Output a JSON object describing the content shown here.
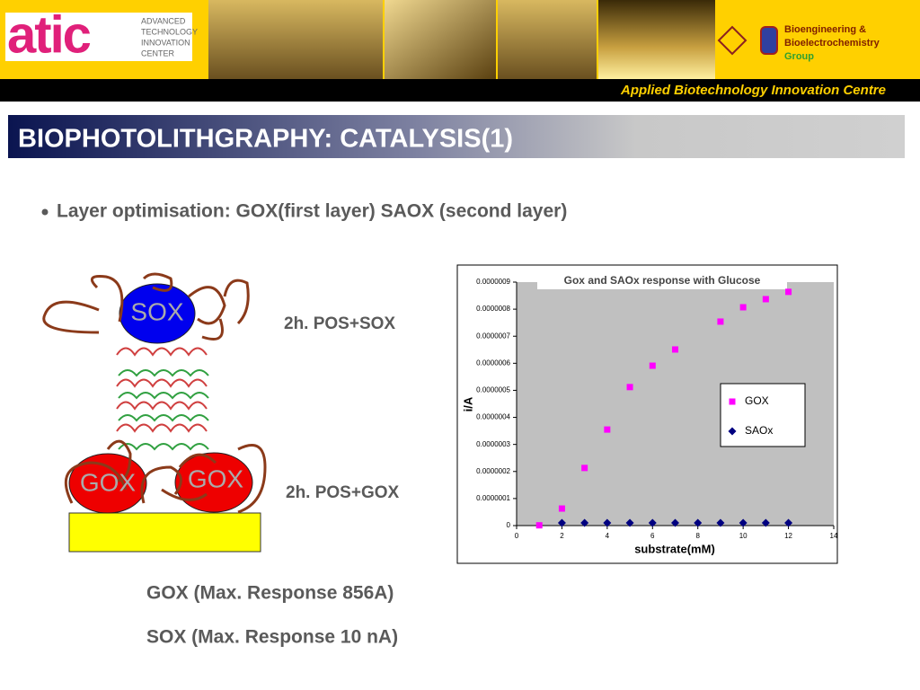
{
  "header": {
    "logo": "atic",
    "logo_text": [
      "ADVANCED",
      "TECHNOLOGY",
      "INNOVATION",
      "CENTER"
    ],
    "group": [
      "Bioengineering &",
      "Bioelectrochemistry",
      "Group"
    ]
  },
  "banner": "Applied Biotechnology Innovation Centre",
  "slide": {
    "title": "BIOPHOTOLITHGRAPHY: CATALYSIS(1)",
    "bullet": "Layer optimisation: GOX(first layer) SAOX (second layer)",
    "diagram": {
      "top": "SOX",
      "bottom": [
        "GOX",
        "GOX"
      ],
      "labels": [
        "2h. POS+SOX",
        "2h. POS+GOX"
      ]
    },
    "notes": [
      "GOX (Max. Response 856A)",
      "SOX (Max. Response 10 nA)"
    ]
  },
  "chart_data": {
    "type": "scatter",
    "title": "Gox and SAOx response with Glucose",
    "xlabel": "substrate(mM)",
    "ylabel": "i/A",
    "xlim": [
      0,
      14
    ],
    "xticks": [
      0,
      2,
      4,
      6,
      8,
      10,
      12,
      14
    ],
    "ylim": [
      0,
      9e-07
    ],
    "yticks": [
      0,
      {
        "value": 1e-07,
        "label": "0.0000001"
      },
      {
        "value": 2e-07,
        "label": "0.0000002"
      },
      {
        "value": 3e-07,
        "label": "0.0000003"
      },
      {
        "value": 4e-07,
        "label": "0.0000004"
      },
      {
        "value": 5e-07,
        "label": "0.0000005"
      },
      {
        "value": 6e-07,
        "label": "0.0000006"
      },
      {
        "value": 7e-07,
        "label": "0.0000007"
      },
      {
        "value": 8e-07,
        "label": "0.0000008"
      },
      {
        "value": 9e-07,
        "label": "0.0000009"
      }
    ],
    "legend": "right",
    "series": [
      {
        "name": "GOX",
        "color": "#ff00ff",
        "marker": "square",
        "x": [
          1,
          2,
          3,
          4,
          5,
          6,
          7,
          9,
          10,
          11,
          12
        ],
        "values": [
          1e-09,
          6.3e-08,
          2.13e-07,
          3.55e-07,
          5.12e-07,
          5.91e-07,
          6.51e-07,
          7.54e-07,
          8.07e-07,
          8.37e-07,
          8.64e-07
        ]
      },
      {
        "name": "SAOx",
        "color": "#000080",
        "marker": "diamond",
        "x": [
          2,
          3,
          4,
          5,
          6,
          7,
          8,
          9,
          10,
          11,
          12
        ],
        "values": [
          1e-08,
          1e-08,
          1e-08,
          1e-08,
          1e-08,
          1e-08,
          1e-08,
          1e-08,
          1e-08,
          1e-08,
          1e-08
        ]
      }
    ]
  }
}
